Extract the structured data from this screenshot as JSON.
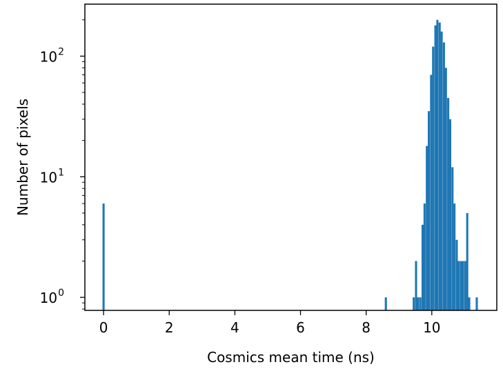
{
  "chart_data": {
    "type": "bar",
    "title": "",
    "xlabel": "Cosmics mean time (ns)",
    "ylabel": "Number of pixels",
    "xscale": "linear",
    "yscale": "log",
    "xlim": [
      -0.57,
      11.98
    ],
    "ylim": [
      0.78,
      270
    ],
    "grid": false,
    "legend": "none",
    "bar_color": "#1f77b4",
    "bin_width": 0.065,
    "x_ticks": [
      0,
      2,
      4,
      6,
      8,
      10
    ],
    "x_tick_labels": [
      "0",
      "2",
      "4",
      "6",
      "8",
      "10"
    ],
    "y_ticks": [
      1,
      10,
      100
    ],
    "y_tick_bases": [
      "10",
      "10",
      "10"
    ],
    "y_tick_exponents": [
      "0",
      "1",
      "2"
    ],
    "bins": [
      {
        "x": 0.0,
        "count": 6
      },
      {
        "x": 8.6,
        "count": 1
      },
      {
        "x": 9.45,
        "count": 1
      },
      {
        "x": 9.52,
        "count": 2
      },
      {
        "x": 9.58,
        "count": 1
      },
      {
        "x": 9.65,
        "count": 1
      },
      {
        "x": 9.72,
        "count": 4
      },
      {
        "x": 9.78,
        "count": 6
      },
      {
        "x": 9.85,
        "count": 18
      },
      {
        "x": 9.91,
        "count": 35
      },
      {
        "x": 9.98,
        "count": 70
      },
      {
        "x": 10.04,
        "count": 120
      },
      {
        "x": 10.11,
        "count": 180
      },
      {
        "x": 10.17,
        "count": 200
      },
      {
        "x": 10.24,
        "count": 190
      },
      {
        "x": 10.3,
        "count": 160
      },
      {
        "x": 10.37,
        "count": 130
      },
      {
        "x": 10.43,
        "count": 80
      },
      {
        "x": 10.5,
        "count": 45
      },
      {
        "x": 10.56,
        "count": 30
      },
      {
        "x": 10.63,
        "count": 12
      },
      {
        "x": 10.69,
        "count": 6
      },
      {
        "x": 10.76,
        "count": 3
      },
      {
        "x": 10.82,
        "count": 2
      },
      {
        "x": 10.89,
        "count": 2
      },
      {
        "x": 10.95,
        "count": 2
      },
      {
        "x": 11.02,
        "count": 2
      },
      {
        "x": 11.08,
        "count": 5
      },
      {
        "x": 11.14,
        "count": 1
      },
      {
        "x": 11.37,
        "count": 1
      }
    ]
  }
}
